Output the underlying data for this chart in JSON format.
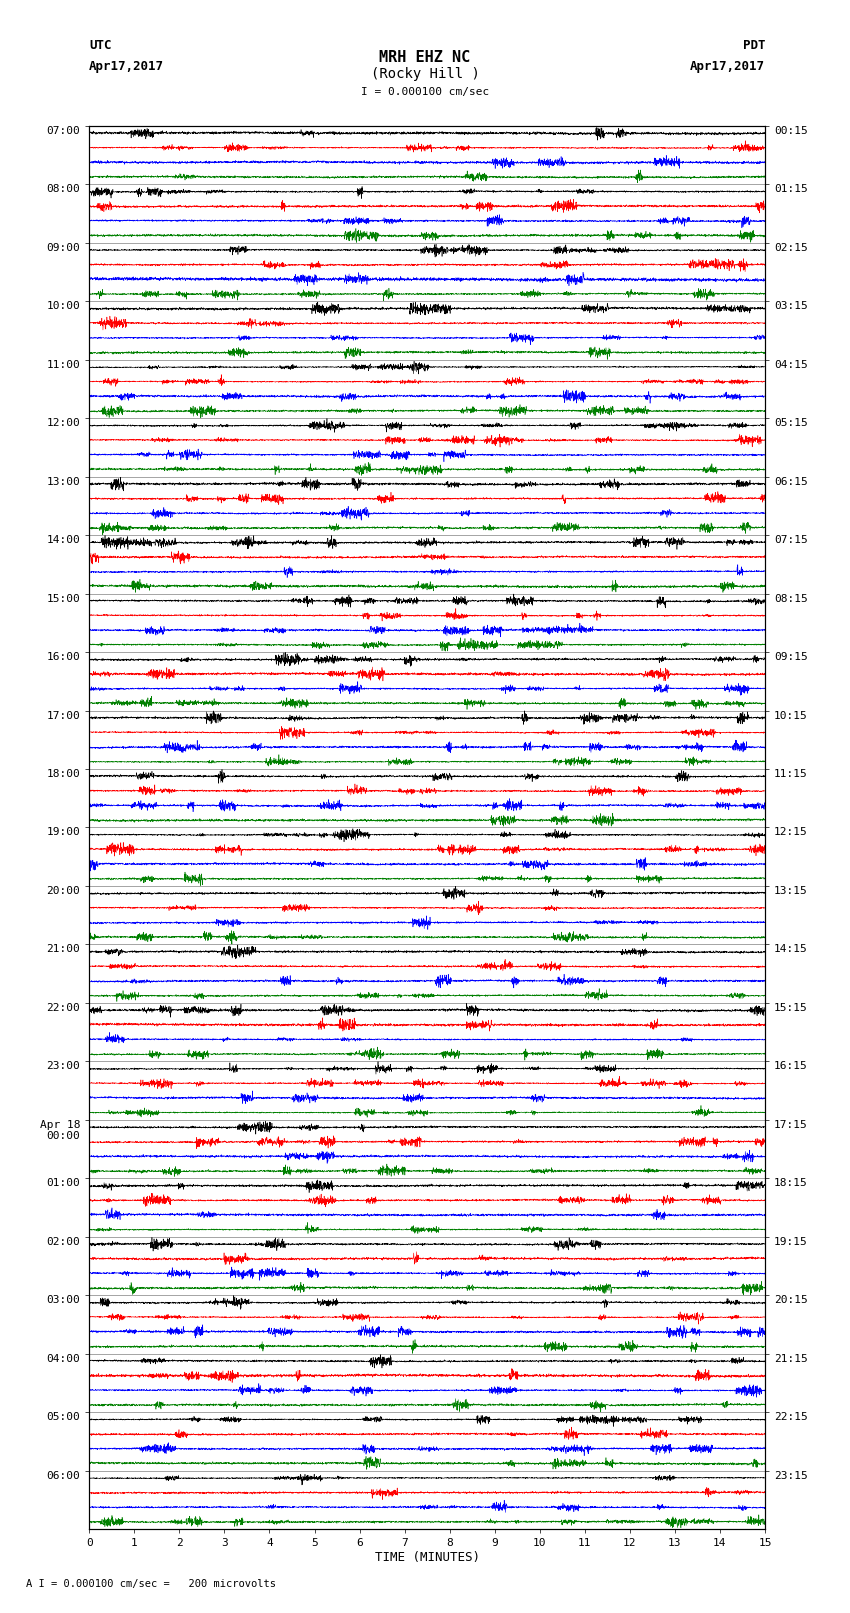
{
  "title_line1": "MRH EHZ NC",
  "title_line2": "(Rocky Hill )",
  "scale_label": "I = 0.000100 cm/sec",
  "bottom_label": "A I = 0.000100 cm/sec =   200 microvolts",
  "xlabel": "TIME (MINUTES)",
  "left_date": "Apr17,2017",
  "right_date": "Apr17,2017",
  "left_timezone": "UTC",
  "right_timezone": "PDT",
  "left_times": [
    "07:00",
    "08:00",
    "09:00",
    "10:00",
    "11:00",
    "12:00",
    "13:00",
    "14:00",
    "15:00",
    "16:00",
    "17:00",
    "18:00",
    "19:00",
    "20:00",
    "21:00",
    "22:00",
    "23:00",
    "Apr 18\n00:00",
    "01:00",
    "02:00",
    "03:00",
    "04:00",
    "05:00",
    "06:00"
  ],
  "right_times": [
    "00:15",
    "01:15",
    "02:15",
    "03:15",
    "04:15",
    "05:15",
    "06:15",
    "07:15",
    "08:15",
    "09:15",
    "10:15",
    "11:15",
    "12:15",
    "13:15",
    "14:15",
    "15:15",
    "16:15",
    "17:15",
    "18:15",
    "19:15",
    "20:15",
    "21:15",
    "22:15",
    "23:15"
  ],
  "n_rows": 24,
  "n_sub": 4,
  "n_cols": 3600,
  "colors": [
    "black",
    "red",
    "blue",
    "green"
  ],
  "bg_color": "white",
  "fig_width": 8.5,
  "fig_height": 16.13,
  "dpi": 100,
  "amplitude_scale": 0.48,
  "noise_base": 0.6,
  "lw": 0.4
}
